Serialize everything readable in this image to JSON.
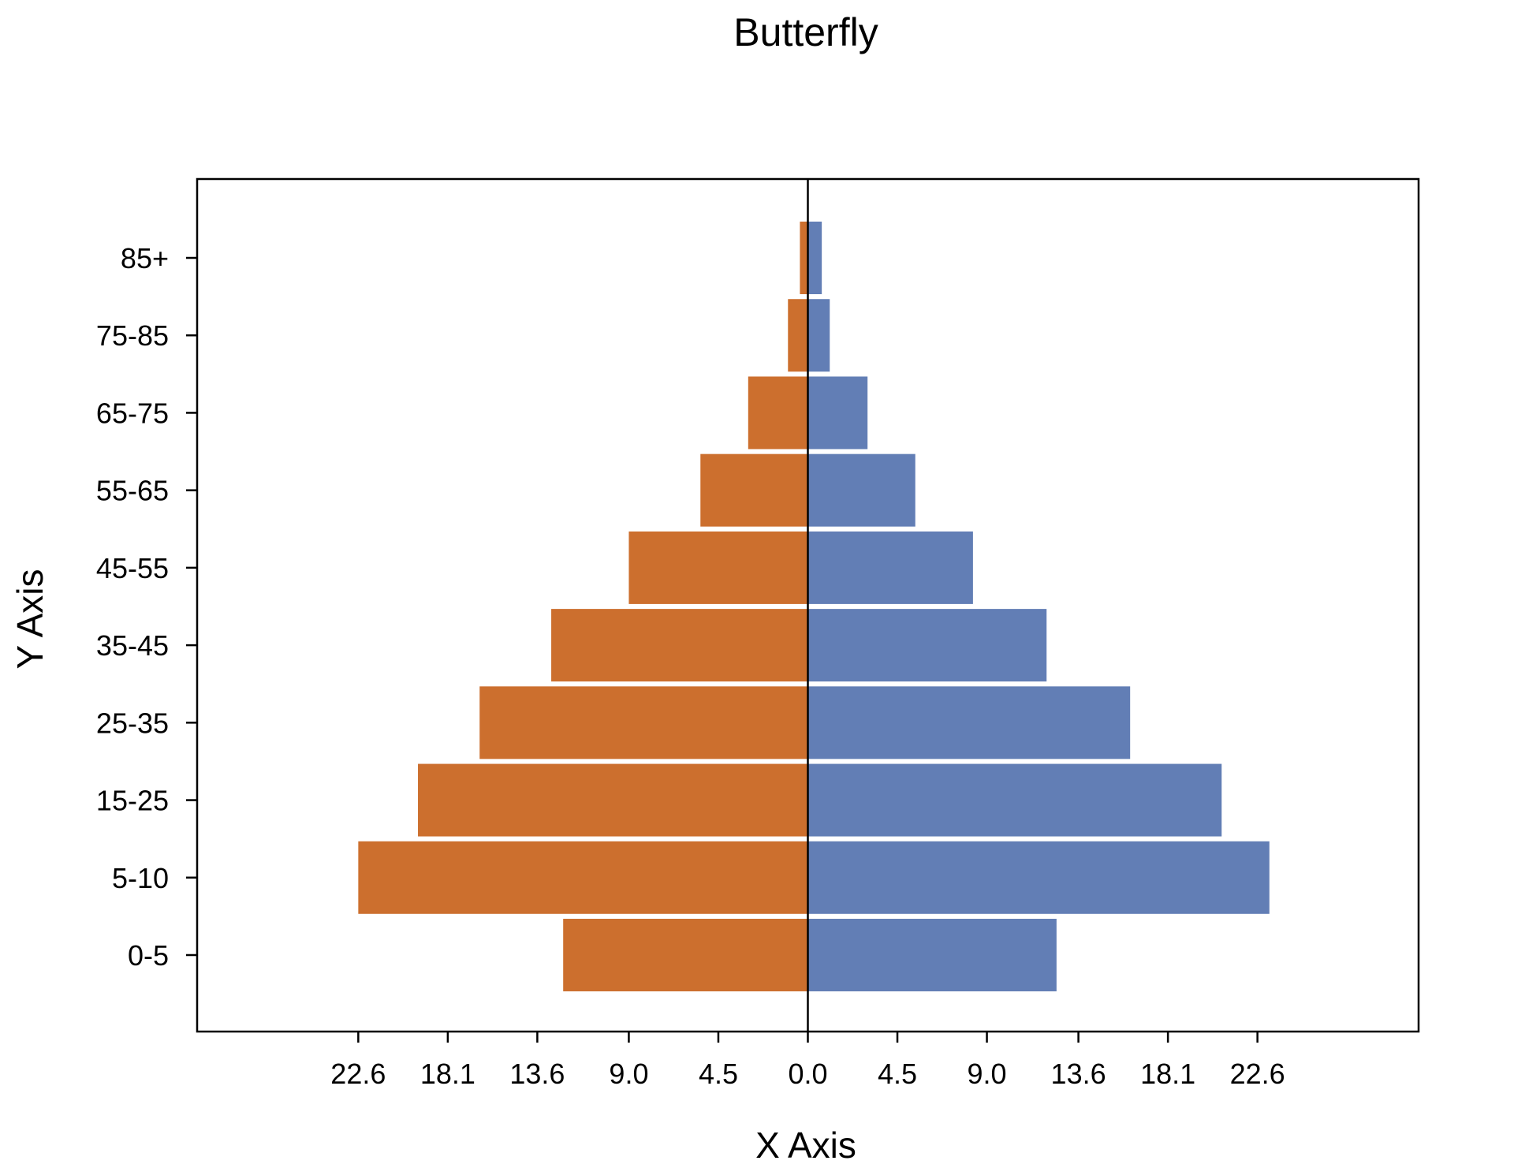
{
  "chart_data": {
    "type": "bar",
    "orientation": "horizontal-butterfly",
    "title": "Butterfly",
    "xlabel": "X Axis",
    "ylabel": "Y Axis",
    "categories": [
      "0-5",
      "5-10",
      "15-25",
      "25-35",
      "35-45",
      "45-55",
      "55-65",
      "65-75",
      "75-85",
      "85+"
    ],
    "series": [
      {
        "side": "left",
        "color": "#CC6F2E",
        "values": [
          12.3,
          22.6,
          19.6,
          16.5,
          12.9,
          9.0,
          5.4,
          3.0,
          1.0,
          0.4
        ]
      },
      {
        "side": "right",
        "color": "#627EB5",
        "values": [
          12.5,
          23.2,
          20.8,
          16.2,
          12.0,
          8.3,
          5.4,
          3.0,
          1.1,
          0.7
        ]
      }
    ],
    "x_ticks": [
      -22.6,
      -18.1,
      -13.6,
      -9.0,
      -4.5,
      0.0,
      4.5,
      9.0,
      13.6,
      18.1,
      22.6
    ],
    "x_tick_labels": [
      "22.6",
      "18.1",
      "13.6",
      "9.0",
      "4.5",
      "0.0",
      "4.5",
      "9.0",
      "13.6",
      "18.1",
      "22.6"
    ],
    "xlim": [
      -30.7,
      30.7
    ],
    "grid": false,
    "legend": "none"
  }
}
